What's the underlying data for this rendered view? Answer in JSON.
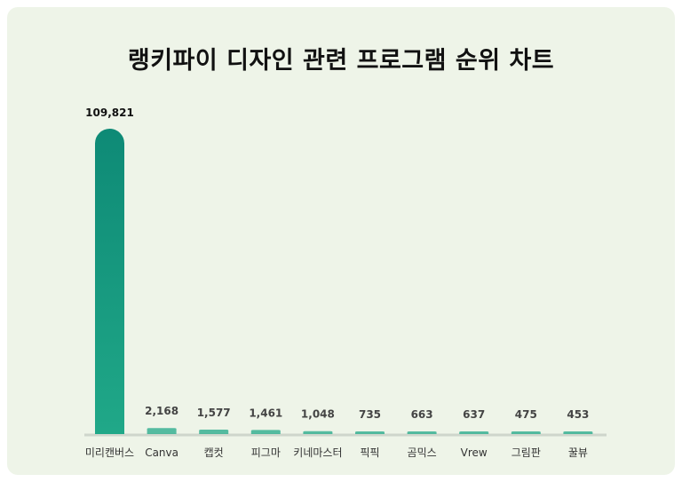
{
  "page": {
    "title": "랭키파이 디자인 관련 프로그램 순위 차트"
  },
  "chart_data": {
    "type": "bar",
    "title": "랭키파이 디자인 관련 프로그램 순위 차트",
    "categories": [
      "미리캔버스",
      "Canva",
      "캡컷",
      "피그마",
      "키네마스터",
      "픽픽",
      "곰믹스",
      "Vrew",
      "그림판",
      "꿀뷰"
    ],
    "values": [
      109821,
      2168,
      1577,
      1461,
      1048,
      735,
      663,
      637,
      475,
      453
    ],
    "value_labels": [
      "109,821",
      "2,168",
      "1,577",
      "1,461",
      "1,048",
      "735",
      "663",
      "637",
      "475",
      "453"
    ],
    "ylim": [
      0,
      109821
    ],
    "grid": false,
    "legend": "none",
    "colors": {
      "bar_top": "#0e8a76",
      "bar_bottom": "#20a888",
      "baseline": "#cfd6cc",
      "label": "#444444",
      "top_label": "#111111",
      "background": "#eef4e8"
    }
  }
}
